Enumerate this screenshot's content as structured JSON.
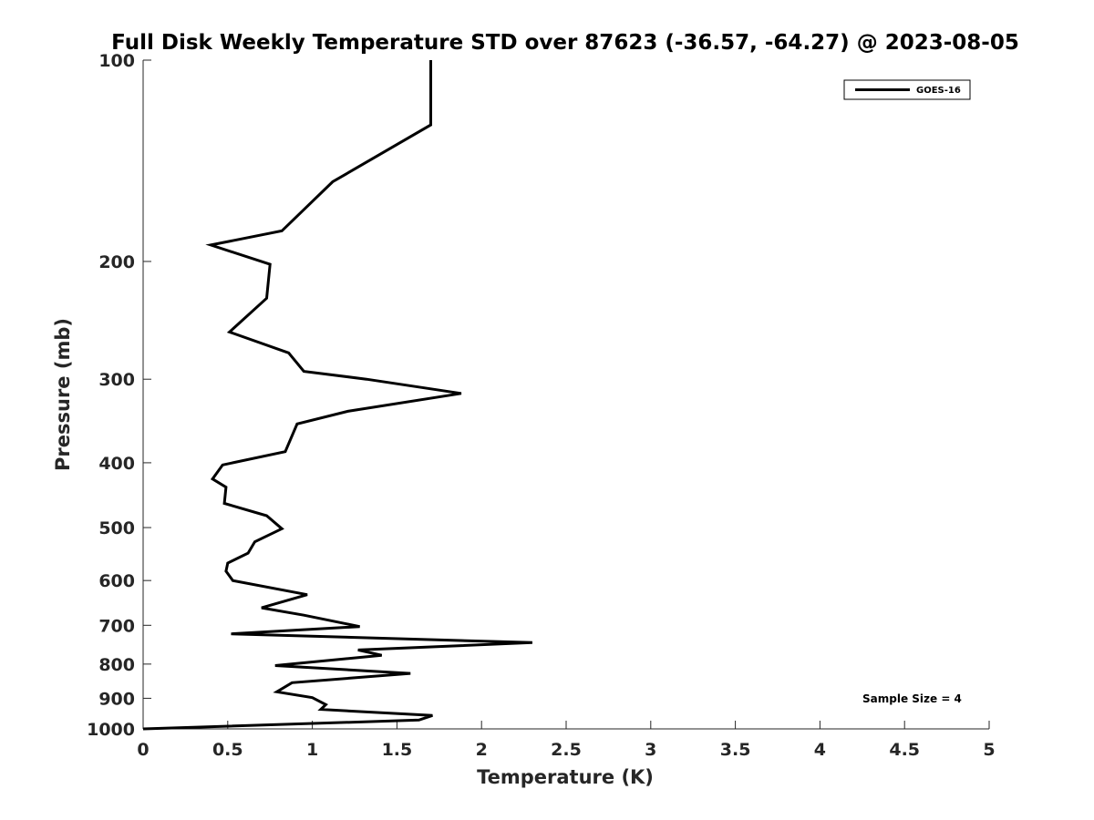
{
  "chart_data": {
    "type": "line",
    "title": "Full Disk Weekly Temperature STD over 87623 (-36.57, -64.27) @ 2023-08-05",
    "xlabel": "Temperature (K)",
    "ylabel": "Pressure (mb)",
    "xlim": [
      0,
      5
    ],
    "ylim": [
      100,
      1000
    ],
    "y_scale": "log",
    "y_reversed": true,
    "x_ticks": [
      "0",
      "0.5",
      "1",
      "1.5",
      "2",
      "2.5",
      "3",
      "3.5",
      "4",
      "4.5",
      "5"
    ],
    "y_ticks": [
      "100",
      "200",
      "300",
      "400",
      "500",
      "600",
      "700",
      "800",
      "900",
      "1000"
    ],
    "grid": false,
    "legend_position": "top-right",
    "annotation": "Sample Size = 4",
    "series": [
      {
        "name": "GOES-16",
        "color": "#000000",
        "points": [
          [
            1.7,
            100
          ],
          [
            1.7,
            125
          ],
          [
            1.12,
            152
          ],
          [
            0.82,
            180
          ],
          [
            0.4,
            189
          ],
          [
            0.75,
            202
          ],
          [
            0.73,
            227
          ],
          [
            0.51,
            255
          ],
          [
            0.86,
            274
          ],
          [
            0.95,
            292
          ],
          [
            1.32,
            300
          ],
          [
            1.88,
            315
          ],
          [
            1.21,
            335
          ],
          [
            0.91,
            350
          ],
          [
            0.84,
            385
          ],
          [
            0.47,
            403
          ],
          [
            0.41,
            423
          ],
          [
            0.49,
            435
          ],
          [
            0.48,
            460
          ],
          [
            0.73,
            480
          ],
          [
            0.82,
            502
          ],
          [
            0.66,
            525
          ],
          [
            0.62,
            546
          ],
          [
            0.5,
            565
          ],
          [
            0.49,
            581
          ],
          [
            0.53,
            600
          ],
          [
            0.97,
            630
          ],
          [
            0.7,
            659
          ],
          [
            0.95,
            676
          ],
          [
            1.28,
            703
          ],
          [
            0.52,
            721
          ],
          [
            2.3,
            743
          ],
          [
            1.27,
            762
          ],
          [
            1.41,
            776
          ],
          [
            0.78,
            804
          ],
          [
            1.58,
            826
          ],
          [
            0.88,
            853
          ],
          [
            0.79,
            880
          ],
          [
            1.0,
            898
          ],
          [
            1.08,
            920
          ],
          [
            1.05,
            935
          ],
          [
            1.71,
            955
          ],
          [
            1.63,
            970
          ],
          [
            0.0,
            1000
          ]
        ]
      }
    ]
  }
}
